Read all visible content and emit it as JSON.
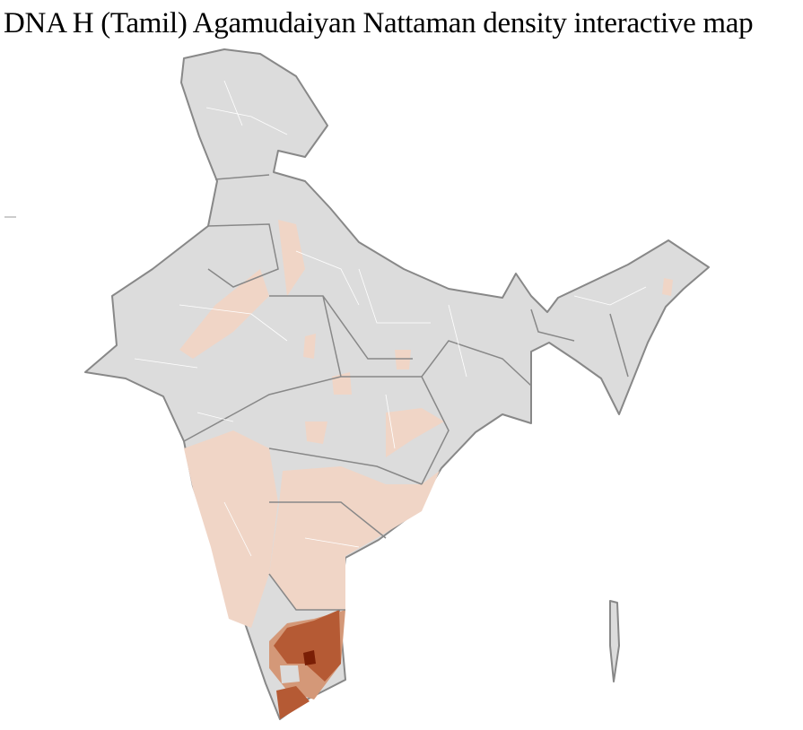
{
  "title": "DNA H (Tamil) Agamudaiyan Nattaman density interactive map",
  "map": {
    "region": "India districts",
    "colors": {
      "no_data": "#dcdcdc",
      "low": "#f0d5c6",
      "medium": "#e8b9a0",
      "high": "#b55a34",
      "highest": "#7a1e05",
      "state_border": "#888888",
      "district_border": "#ffffff"
    }
  }
}
